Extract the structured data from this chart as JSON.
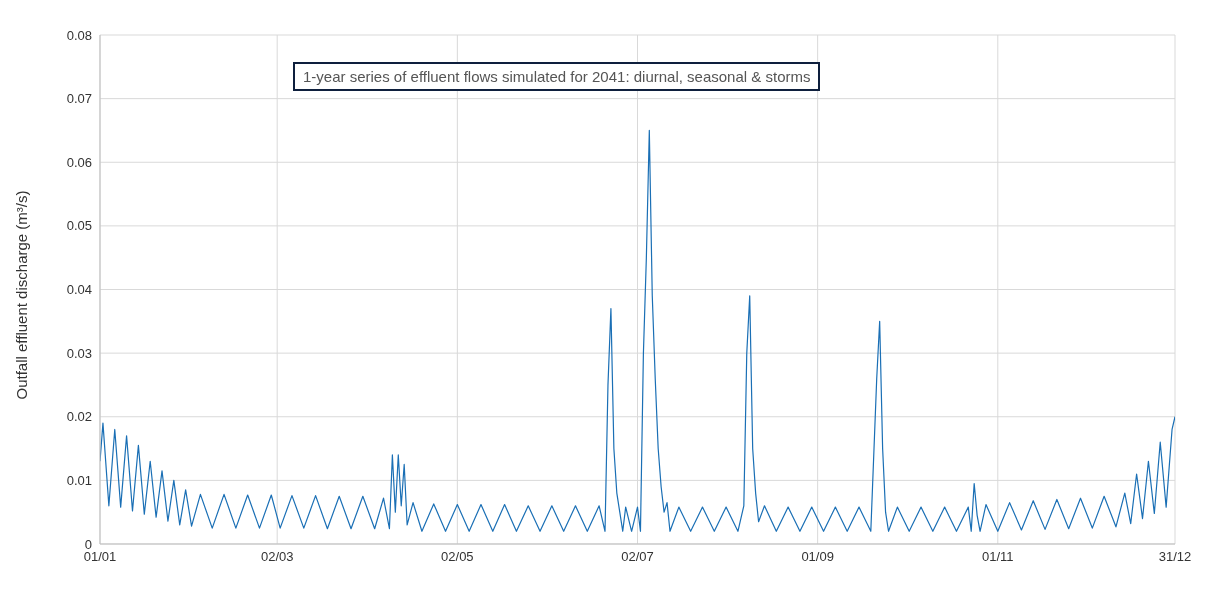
{
  "chart_data": {
    "type": "line",
    "title": "1-year series of effluent flows simulated for 2041: diurnal, seasonal & storms",
    "ylabel": "Outfall effluent discharge (m³/s)",
    "ylim": [
      0,
      0.08
    ],
    "yticks": [
      0,
      0.01,
      0.02,
      0.03,
      0.04,
      0.05,
      0.06,
      0.07,
      0.08
    ],
    "xlim": [
      "--01-01",
      "--12-31"
    ],
    "xticks": [
      {
        "value": "--01-01",
        "label": "01/01"
      },
      {
        "value": "--03-02",
        "label": "02/03"
      },
      {
        "value": "--05-02",
        "label": "02/05"
      },
      {
        "value": "--07-02",
        "label": "02/07"
      },
      {
        "value": "--09-01",
        "label": "01/09"
      },
      {
        "value": "--11-01",
        "label": "01/11"
      },
      {
        "value": "--12-31",
        "label": "31/12"
      }
    ],
    "grid": true,
    "marker": "none",
    "line_style": "solid",
    "x": [
      "--01-01",
      "--01-02",
      "--01-04",
      "--01-06",
      "--01-08",
      "--01-10",
      "--01-12",
      "--01-14",
      "--01-16",
      "--01-18",
      "--01-20",
      "--01-22",
      "--01-24",
      "--01-26",
      "--01-28",
      "--01-30",
      "--02-01",
      "--02-04",
      "--02-08",
      "--02-12",
      "--02-16",
      "--02-20",
      "--02-24",
      "--02-28",
      "--03-03",
      "--03-07",
      "--03-11",
      "--03-15",
      "--03-19",
      "--03-23",
      "--03-27",
      "--03-31",
      "--04-04",
      "--04-07",
      "--04-09",
      "--04-10",
      "--04-11",
      "--04-12",
      "--04-13",
      "--04-14",
      "--04-15",
      "--04-17",
      "--04-20",
      "--04-24",
      "--04-28",
      "--05-02",
      "--05-06",
      "--05-10",
      "--05-14",
      "--05-18",
      "--05-22",
      "--05-26",
      "--05-30",
      "--06-03",
      "--06-07",
      "--06-11",
      "--06-15",
      "--06-19",
      "--06-21",
      "--06-22",
      "--06-23",
      "--06-24",
      "--06-25",
      "--06-26",
      "--06-27",
      "--06-28",
      "--06-30",
      "--07-02",
      "--07-03",
      "--07-04",
      "--07-05",
      "--07-06",
      "--07-07",
      "--07-08",
      "--07-09",
      "--07-10",
      "--07-11",
      "--07-12",
      "--07-13",
      "--07-16",
      "--07-20",
      "--07-24",
      "--07-28",
      "--08-01",
      "--08-05",
      "--08-07",
      "--08-08",
      "--08-09",
      "--08-10",
      "--08-11",
      "--08-12",
      "--08-14",
      "--08-18",
      "--08-22",
      "--08-26",
      "--08-30",
      "--09-03",
      "--09-07",
      "--09-11",
      "--09-15",
      "--09-19",
      "--09-21",
      "--09-22",
      "--09-23",
      "--09-24",
      "--09-25",
      "--09-28",
      "--10-02",
      "--10-06",
      "--10-10",
      "--10-14",
      "--10-18",
      "--10-22",
      "--10-23",
      "--10-24",
      "--10-25",
      "--10-26",
      "--10-28",
      "--11-01",
      "--11-05",
      "--11-09",
      "--11-13",
      "--11-17",
      "--11-21",
      "--11-25",
      "--11-29",
      "--12-03",
      "--12-07",
      "--12-11",
      "--12-14",
      "--12-16",
      "--12-18",
      "--12-20",
      "--12-22",
      "--12-24",
      "--12-26",
      "--12-28",
      "--12-30",
      "--12-31"
    ],
    "series": [
      {
        "color": "#1a6fb5",
        "values": [
          0.013,
          0.019,
          0.006,
          0.018,
          0.0058,
          0.017,
          0.0052,
          0.0155,
          0.0047,
          0.013,
          0.0042,
          0.0115,
          0.0036,
          0.01,
          0.003,
          0.0085,
          0.0028,
          0.0078,
          0.0025,
          0.0078,
          0.0025,
          0.0077,
          0.0025,
          0.0077,
          0.0025,
          0.0076,
          0.0025,
          0.0076,
          0.0024,
          0.0075,
          0.0024,
          0.0075,
          0.0024,
          0.0072,
          0.0024,
          0.014,
          0.005,
          0.014,
          0.006,
          0.0125,
          0.003,
          0.0065,
          0.002,
          0.0063,
          0.002,
          0.0062,
          0.002,
          0.0062,
          0.002,
          0.0062,
          0.002,
          0.006,
          0.002,
          0.006,
          0.002,
          0.006,
          0.002,
          0.006,
          0.002,
          0.025,
          0.037,
          0.015,
          0.008,
          0.005,
          0.002,
          0.0058,
          0.002,
          0.0058,
          0.002,
          0.03,
          0.045,
          0.065,
          0.039,
          0.026,
          0.015,
          0.009,
          0.005,
          0.0065,
          0.002,
          0.0058,
          0.002,
          0.0058,
          0.002,
          0.0058,
          0.002,
          0.006,
          0.03,
          0.039,
          0.015,
          0.008,
          0.0035,
          0.006,
          0.002,
          0.0058,
          0.002,
          0.0058,
          0.002,
          0.0058,
          0.002,
          0.0058,
          0.002,
          0.026,
          0.035,
          0.015,
          0.005,
          0.002,
          0.0058,
          0.002,
          0.0058,
          0.002,
          0.0058,
          0.002,
          0.0058,
          0.002,
          0.0095,
          0.0045,
          0.002,
          0.0062,
          0.002,
          0.0065,
          0.0022,
          0.0068,
          0.0023,
          0.007,
          0.0024,
          0.0072,
          0.0025,
          0.0075,
          0.0027,
          0.008,
          0.0032,
          0.011,
          0.004,
          0.013,
          0.0048,
          0.016,
          0.0058,
          0.018,
          0.02
        ]
      }
    ]
  }
}
